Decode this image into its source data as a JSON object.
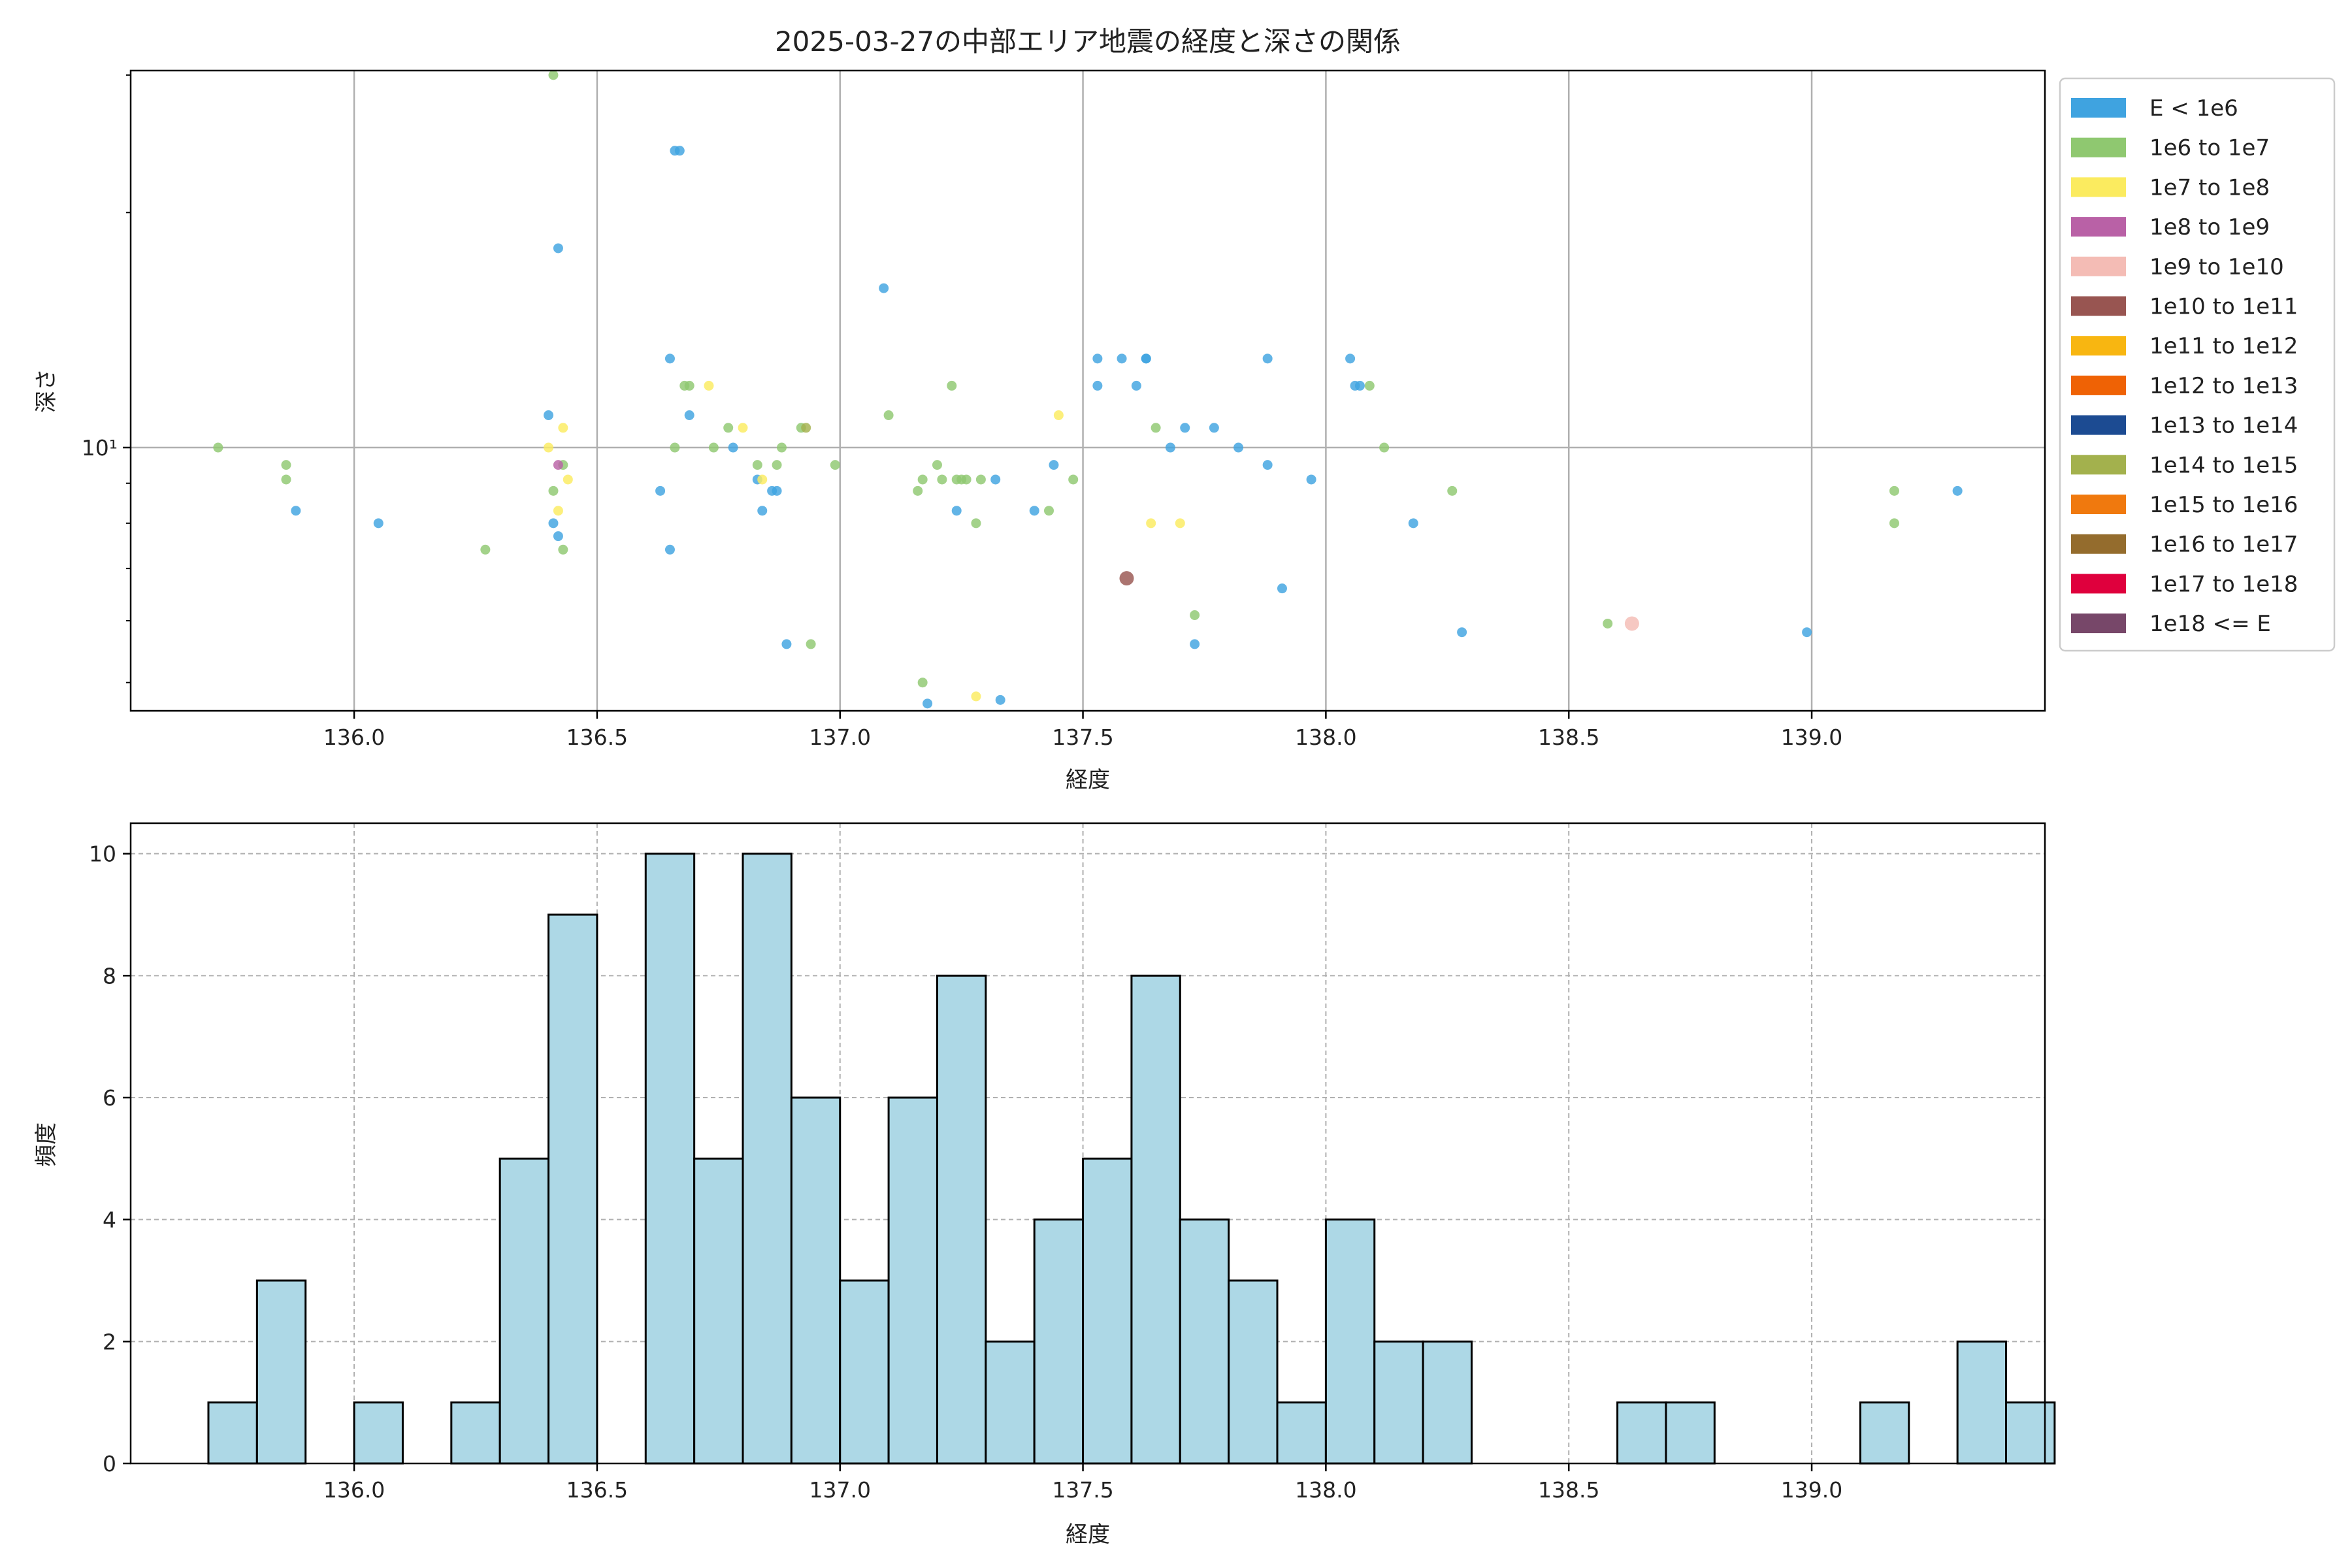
{
  "chart_data": [
    {
      "type": "scatter",
      "title": "2025-03-27の中部エリア地震の経度と深さの関係",
      "xlabel": "経度",
      "ylabel": "深さ",
      "xlim": [
        135.54,
        139.48
      ],
      "ylim": [
        4.6,
        30.4
      ],
      "yscale": "log",
      "xticks": [
        136.0,
        136.5,
        137.0,
        137.5,
        138.0,
        138.5,
        139.0
      ],
      "xtick_labels": [
        "136.0",
        "136.5",
        "137.0",
        "137.5",
        "138.0",
        "138.5",
        "139.0"
      ],
      "yticks": [
        10
      ],
      "ytick_labels": [
        "10¹"
      ],
      "yminor_ticks": [
        5,
        6,
        7,
        8,
        9,
        20,
        30
      ],
      "grid": true,
      "legend_position": "outside-right",
      "legend": [
        {
          "label": "E < 1e6",
          "color": "#3fa3e0"
        },
        {
          "label": "1e6 to 1e7",
          "color": "#8fc870"
        },
        {
          "label": "1e7 to 1e8",
          "color": "#fbeb5f"
        },
        {
          "label": "1e8 to 1e9",
          "color": "#b961a6"
        },
        {
          "label": "1e9 to 1e10",
          "color": "#f4bcb5"
        },
        {
          "label": "1e10 to 1e11",
          "color": "#985551"
        },
        {
          "label": "1e11 to 1e12",
          "color": "#f8b611"
        },
        {
          "label": "1e12 to 1e13",
          "color": "#ef6205"
        },
        {
          "label": "1e13 to 1e14",
          "color": "#1c4b92"
        },
        {
          "label": "1e14 to 1e15",
          "color": "#a3b14d"
        },
        {
          "label": "1e15 to 1e16",
          "color": "#f0790e"
        },
        {
          "label": "1e16 to 1e17",
          "color": "#946c2d"
        },
        {
          "label": "1e17 to 1e18",
          "color": "#df003d"
        },
        {
          "label": "1e18 <= E",
          "color": "#774769"
        }
      ],
      "points": [
        {
          "x": 135.72,
          "y": 10,
          "c": 1
        },
        {
          "x": 135.86,
          "y": 9.5,
          "c": 1
        },
        {
          "x": 135.86,
          "y": 9.1,
          "c": 1
        },
        {
          "x": 135.88,
          "y": 8.3,
          "c": 0
        },
        {
          "x": 136.05,
          "y": 8.0,
          "c": 0
        },
        {
          "x": 136.27,
          "y": 7.4,
          "c": 1
        },
        {
          "x": 136.41,
          "y": 30,
          "c": 1
        },
        {
          "x": 136.42,
          "y": 18,
          "c": 0
        },
        {
          "x": 136.4,
          "y": 11.0,
          "c": 0
        },
        {
          "x": 136.4,
          "y": 10.0,
          "c": 2
        },
        {
          "x": 136.43,
          "y": 10.6,
          "c": 2
        },
        {
          "x": 136.43,
          "y": 9.5,
          "c": 1
        },
        {
          "x": 136.42,
          "y": 9.5,
          "c": 3
        },
        {
          "x": 136.44,
          "y": 9.1,
          "c": 2
        },
        {
          "x": 136.41,
          "y": 8.8,
          "c": 1
        },
        {
          "x": 136.42,
          "y": 8.3,
          "c": 2
        },
        {
          "x": 136.41,
          "y": 8.0,
          "c": 0
        },
        {
          "x": 136.42,
          "y": 7.7,
          "c": 0
        },
        {
          "x": 136.43,
          "y": 7.4,
          "c": 1
        },
        {
          "x": 136.63,
          "y": 8.8,
          "c": 0
        },
        {
          "x": 136.65,
          "y": 7.4,
          "c": 0
        },
        {
          "x": 136.66,
          "y": 10,
          "c": 1
        },
        {
          "x": 136.65,
          "y": 13,
          "c": 0
        },
        {
          "x": 136.66,
          "y": 24,
          "c": 0
        },
        {
          "x": 136.67,
          "y": 24,
          "c": 0
        },
        {
          "x": 136.68,
          "y": 12,
          "c": 1
        },
        {
          "x": 136.69,
          "y": 12,
          "c": 1
        },
        {
          "x": 136.73,
          "y": 12,
          "c": 2
        },
        {
          "x": 136.69,
          "y": 11,
          "c": 0
        },
        {
          "x": 136.74,
          "y": 10,
          "c": 1
        },
        {
          "x": 136.77,
          "y": 10.6,
          "c": 1
        },
        {
          "x": 136.78,
          "y": 10,
          "c": 0
        },
        {
          "x": 136.8,
          "y": 10.6,
          "c": 2
        },
        {
          "x": 136.83,
          "y": 9.5,
          "c": 1
        },
        {
          "x": 136.83,
          "y": 9.1,
          "c": 0
        },
        {
          "x": 136.84,
          "y": 9.1,
          "c": 2
        },
        {
          "x": 136.84,
          "y": 8.3,
          "c": 0
        },
        {
          "x": 136.86,
          "y": 8.8,
          "c": 0
        },
        {
          "x": 136.87,
          "y": 8.8,
          "c": 0
        },
        {
          "x": 136.87,
          "y": 9.5,
          "c": 1
        },
        {
          "x": 136.88,
          "y": 10,
          "c": 1
        },
        {
          "x": 136.89,
          "y": 5.6,
          "c": 0
        },
        {
          "x": 136.92,
          "y": 10.6,
          "c": 1
        },
        {
          "x": 136.93,
          "y": 10.6,
          "c": 9
        },
        {
          "x": 136.94,
          "y": 5.6,
          "c": 1
        },
        {
          "x": 136.99,
          "y": 9.5,
          "c": 1
        },
        {
          "x": 137.09,
          "y": 16,
          "c": 0
        },
        {
          "x": 137.1,
          "y": 11,
          "c": 1
        },
        {
          "x": 137.16,
          "y": 8.8,
          "c": 1
        },
        {
          "x": 137.17,
          "y": 9.1,
          "c": 1
        },
        {
          "x": 137.17,
          "y": 5.0,
          "c": 1
        },
        {
          "x": 137.18,
          "y": 4.7,
          "c": 0
        },
        {
          "x": 137.2,
          "y": 9.5,
          "c": 1
        },
        {
          "x": 137.21,
          "y": 9.1,
          "c": 1
        },
        {
          "x": 137.23,
          "y": 12,
          "c": 1
        },
        {
          "x": 137.24,
          "y": 8.3,
          "c": 0
        },
        {
          "x": 137.24,
          "y": 9.1,
          "c": 1
        },
        {
          "x": 137.25,
          "y": 9.1,
          "c": 1
        },
        {
          "x": 137.26,
          "y": 9.1,
          "c": 1
        },
        {
          "x": 137.28,
          "y": 8.0,
          "c": 1
        },
        {
          "x": 137.28,
          "y": 4.8,
          "c": 2
        },
        {
          "x": 137.29,
          "y": 9.1,
          "c": 1
        },
        {
          "x": 137.32,
          "y": 9.1,
          "c": 0
        },
        {
          "x": 137.33,
          "y": 4.75,
          "c": 0
        },
        {
          "x": 137.4,
          "y": 8.3,
          "c": 0
        },
        {
          "x": 137.43,
          "y": 8.3,
          "c": 1
        },
        {
          "x": 137.44,
          "y": 9.5,
          "c": 0
        },
        {
          "x": 137.45,
          "y": 11,
          "c": 2
        },
        {
          "x": 137.48,
          "y": 9.1,
          "c": 1
        },
        {
          "x": 137.53,
          "y": 13,
          "c": 0
        },
        {
          "x": 137.53,
          "y": 12,
          "c": 0
        },
        {
          "x": 137.58,
          "y": 13,
          "c": 0
        },
        {
          "x": 137.59,
          "y": 6.8,
          "c": 5
        },
        {
          "x": 137.61,
          "y": 12,
          "c": 0
        },
        {
          "x": 137.63,
          "y": 13,
          "c": 0
        },
        {
          "x": 137.63,
          "y": 13,
          "c": 0
        },
        {
          "x": 137.64,
          "y": 8.0,
          "c": 2
        },
        {
          "x": 137.65,
          "y": 10.6,
          "c": 1
        },
        {
          "x": 137.68,
          "y": 10,
          "c": 0
        },
        {
          "x": 137.7,
          "y": 8.0,
          "c": 2
        },
        {
          "x": 137.71,
          "y": 10.6,
          "c": 0
        },
        {
          "x": 137.73,
          "y": 6.1,
          "c": 1
        },
        {
          "x": 137.73,
          "y": 5.6,
          "c": 0
        },
        {
          "x": 137.77,
          "y": 10.6,
          "c": 0
        },
        {
          "x": 137.82,
          "y": 10,
          "c": 0
        },
        {
          "x": 137.88,
          "y": 13,
          "c": 0
        },
        {
          "x": 137.88,
          "y": 9.5,
          "c": 0
        },
        {
          "x": 137.91,
          "y": 6.6,
          "c": 0
        },
        {
          "x": 137.97,
          "y": 9.1,
          "c": 0
        },
        {
          "x": 138.05,
          "y": 13,
          "c": 0
        },
        {
          "x": 138.06,
          "y": 12,
          "c": 0
        },
        {
          "x": 138.07,
          "y": 12,
          "c": 0
        },
        {
          "x": 138.09,
          "y": 12,
          "c": 1
        },
        {
          "x": 138.12,
          "y": 10,
          "c": 1
        },
        {
          "x": 138.18,
          "y": 8.0,
          "c": 0
        },
        {
          "x": 138.26,
          "y": 8.8,
          "c": 1
        },
        {
          "x": 138.28,
          "y": 5.8,
          "c": 0
        },
        {
          "x": 138.58,
          "y": 5.95,
          "c": 1
        },
        {
          "x": 138.63,
          "y": 5.95,
          "c": 4
        },
        {
          "x": 138.99,
          "y": 5.8,
          "c": 0
        },
        {
          "x": 139.17,
          "y": 8.8,
          "c": 1
        },
        {
          "x": 139.17,
          "y": 8.0,
          "c": 1
        },
        {
          "x": 139.3,
          "y": 8.8,
          "c": 0
        }
      ]
    },
    {
      "type": "bar",
      "subtype": "histogram",
      "title": "",
      "xlabel": "経度",
      "ylabel": "頻度",
      "xlim": [
        135.54,
        139.48
      ],
      "ylim": [
        0,
        10.5
      ],
      "xticks": [
        136.0,
        136.5,
        137.0,
        137.5,
        138.0,
        138.5,
        139.0
      ],
      "xtick_labels": [
        "136.0",
        "136.5",
        "137.0",
        "137.5",
        "138.0",
        "138.5",
        "139.0"
      ],
      "yticks": [
        0,
        2,
        4,
        6,
        8,
        10
      ],
      "ytick_labels": [
        "0",
        "2",
        "4",
        "6",
        "8",
        "10"
      ],
      "grid": true,
      "bin_start": 135.7,
      "bin_width": 0.1,
      "values": [
        1,
        3,
        0,
        1,
        0,
        1,
        5,
        9,
        0,
        10,
        5,
        10,
        6,
        3,
        6,
        8,
        2,
        4,
        5,
        8,
        4,
        3,
        1,
        4,
        2,
        2,
        0,
        0,
        0,
        1,
        1,
        0,
        0,
        0,
        1,
        0,
        2,
        1
      ],
      "bar_color": "#add8e6",
      "edge_color": "#000000"
    }
  ]
}
